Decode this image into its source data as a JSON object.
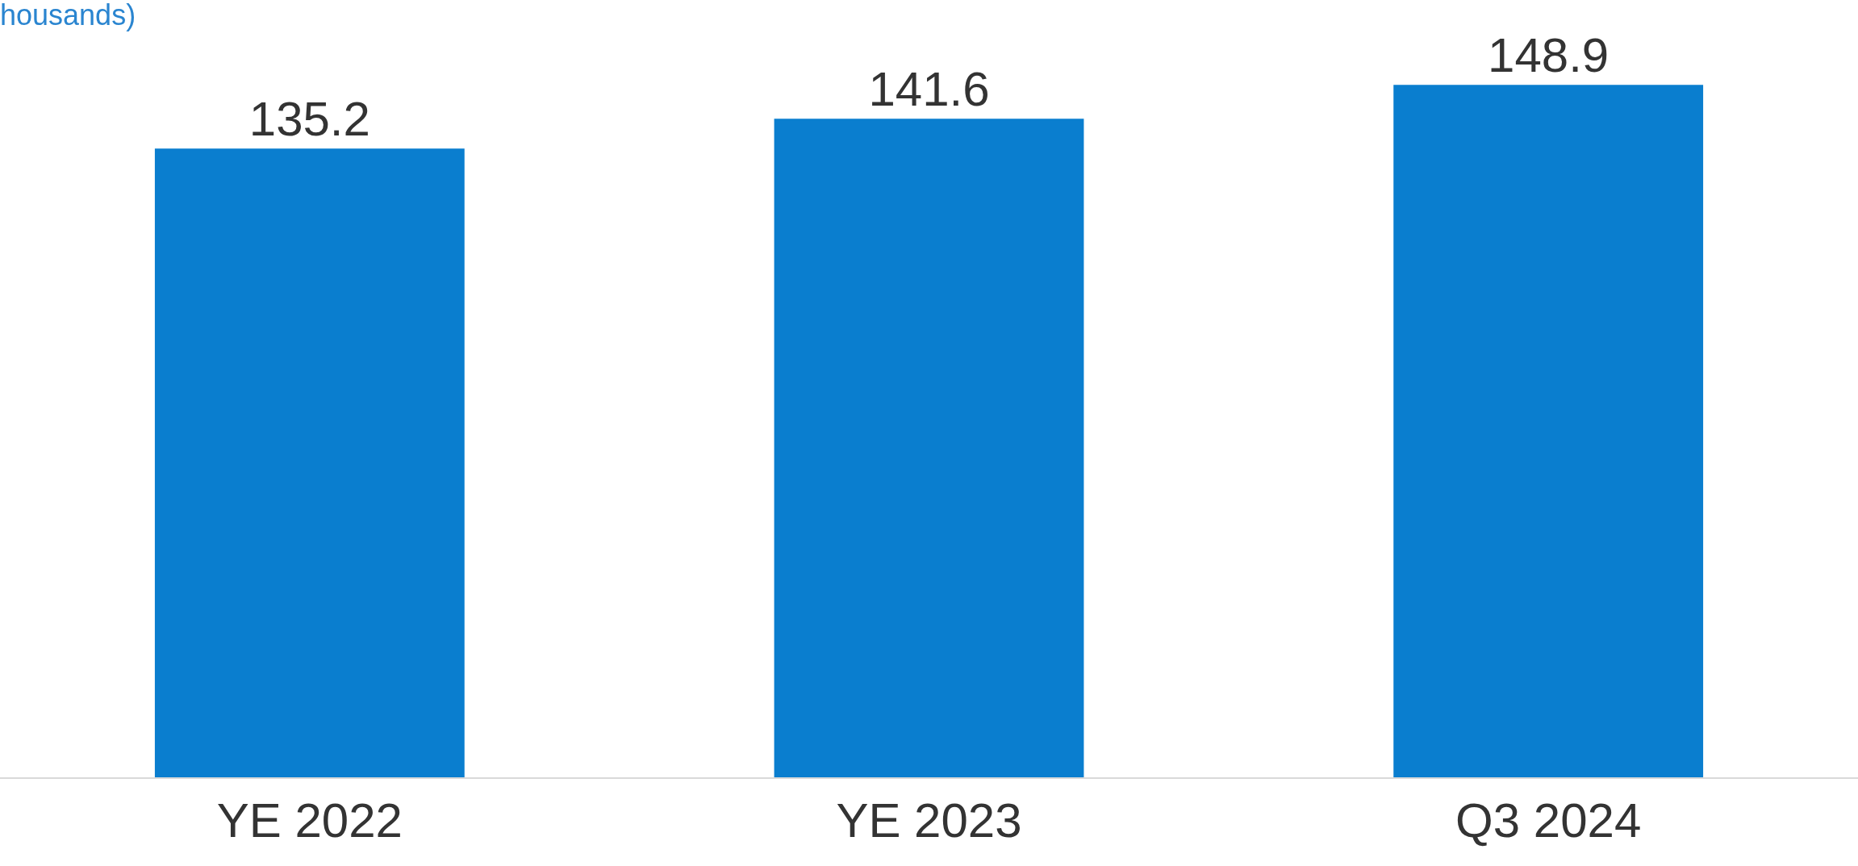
{
  "chart_data": {
    "type": "bar",
    "title": "housands)",
    "categories": [
      "YE 2022",
      "YE 2023",
      "Q3 2024"
    ],
    "values": [
      135.2,
      141.6,
      148.9
    ],
    "color": "#0a7ecf",
    "tick_labels": "x",
    "data_labels": true,
    "legend": false
  }
}
